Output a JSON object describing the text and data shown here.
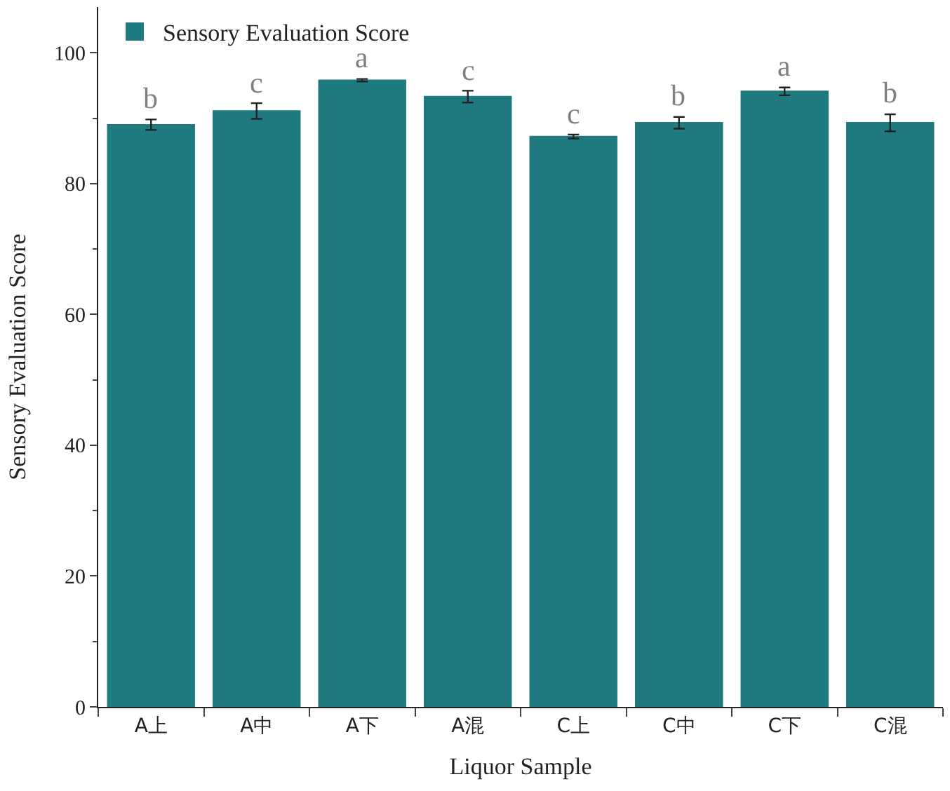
{
  "chart_data": {
    "type": "bar",
    "xlabel": "Liquor Sample",
    "ylabel": "Sensory Evaluation Score",
    "categories": [
      "A上",
      "A中",
      "A下",
      "A混",
      "C上",
      "C中",
      "C下",
      "C混"
    ],
    "series": [
      {
        "name": "Sensory Evaluation Score",
        "color": "#1f7a80",
        "values": [
          89.0,
          91.1,
          95.8,
          93.3,
          87.2,
          89.3,
          94.1,
          89.3
        ],
        "errors": [
          0.8,
          1.2,
          0.2,
          0.9,
          0.3,
          0.9,
          0.6,
          1.3
        ]
      }
    ],
    "annotations": [
      "b",
      "c",
      "a",
      "c",
      "c",
      "b",
      "a",
      "b"
    ],
    "ylim": [
      0,
      107
    ],
    "yticks": [
      0,
      20,
      40,
      60,
      80,
      100
    ],
    "grid": false,
    "legend": "top left"
  }
}
